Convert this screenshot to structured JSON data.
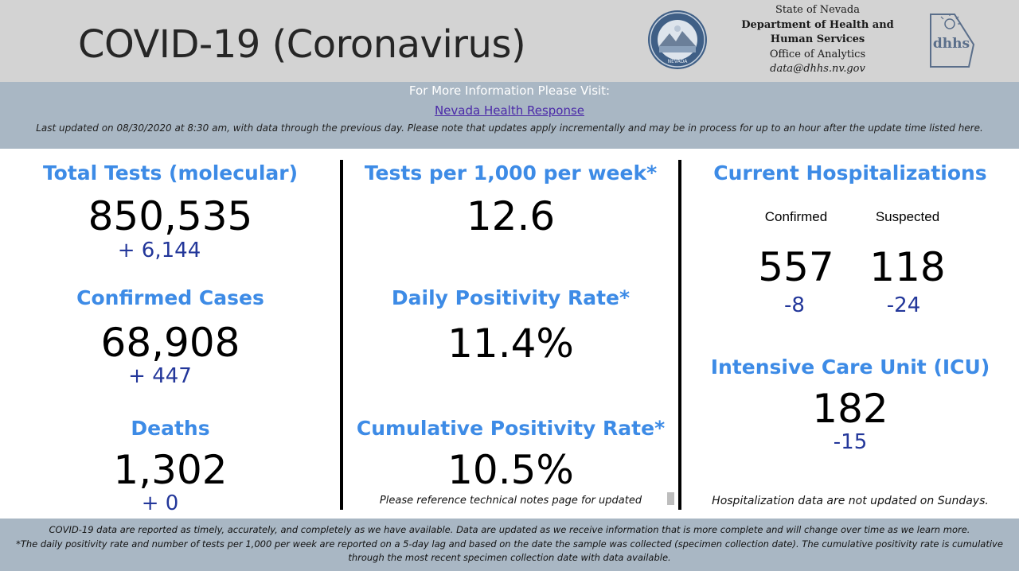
{
  "header": {
    "title": "COVID-19 (Coronavirus)",
    "seal_icon": "nevada-state-seal",
    "dept_lines": [
      "State of Nevada",
      "Department of Health and",
      "Human Services",
      "Office of Analytics",
      "data@dhhs.nv.gov"
    ],
    "logo_icon": "dhhs-logo"
  },
  "info": {
    "visit_text": "For More Information Please Visit:",
    "link_text": "Nevada Health Response",
    "updated_text": "Last updated on 08/30/2020 at 8:30 am, with data through the previous day.  Please note that updates apply incrementally and may be in process for up to an hour after the update time listed here."
  },
  "left": {
    "tests_label": "Total Tests (molecular)",
    "tests_value": "850,535",
    "tests_delta": "+ 6,144",
    "cases_label": "Confirmed Cases",
    "cases_value": "68,908",
    "cases_delta": "+ 447",
    "deaths_label": "Deaths",
    "deaths_value": "1,302",
    "deaths_delta": "+ 0"
  },
  "middle": {
    "tpw_label": "Tests per 1,000 per week*",
    "tpw_value": "12.6",
    "daily_label": "Daily Positivity Rate*",
    "daily_value": "11.4%",
    "cum_label": "Cumulative Positivity Rate*",
    "cum_value": "10.5%",
    "note": "Please reference technical notes page for updated"
  },
  "right": {
    "hosp_label": "Current Hospitalizations",
    "confirmed_label": "Confirmed",
    "suspected_label": "Suspected",
    "confirmed_value": "557",
    "suspected_value": "118",
    "confirmed_delta": "-8",
    "suspected_delta": "-24",
    "icu_label": "Intensive Care Unit (ICU)",
    "icu_value": "182",
    "icu_delta": "-15",
    "note": "Hospitalization data are not updated on Sundays."
  },
  "footer": {
    "line1": "COVID-19 data are reported as timely, accurately, and completely as we have available.  Data are updated as we receive information that is more complete and will change over time as we learn more.",
    "line2": "*The daily positivity rate and number of tests per 1,000 per week are reported on a 5-day lag and based on the date the sample was collected (specimen collection date).  The cumulative positivity rate is cumulative through the most recent specimen collection date with data available."
  },
  "colors": {
    "accent_blue": "#3d8be6",
    "delta_blue": "#23379a",
    "header_gray": "#d3d3d3",
    "band_blue_gray": "#a9b7c4"
  }
}
